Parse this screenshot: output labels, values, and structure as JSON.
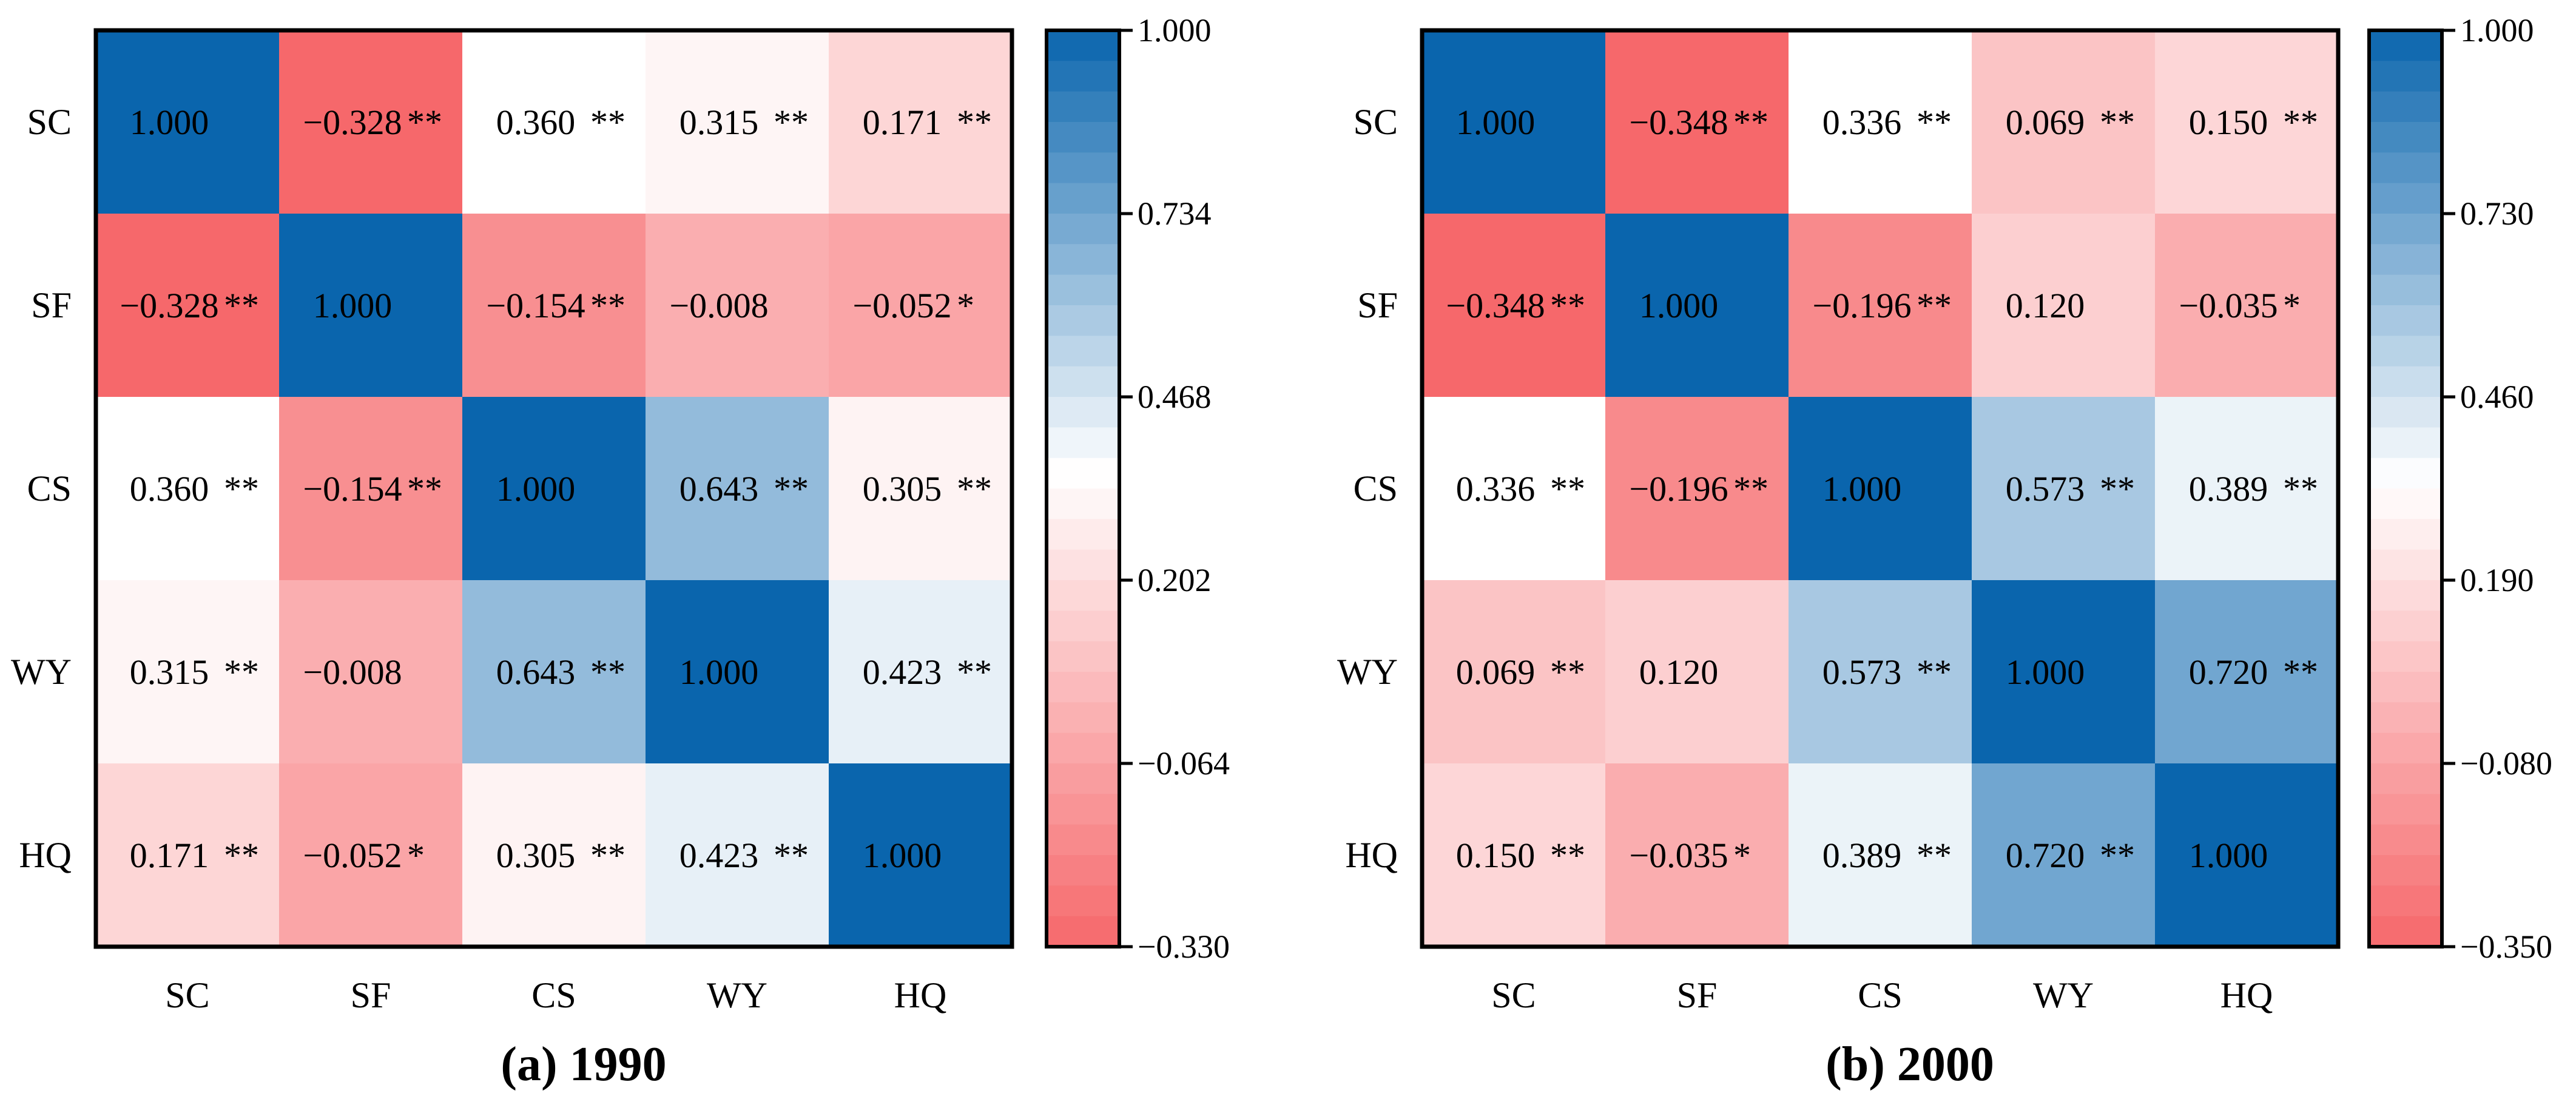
{
  "chart_data": [
    {
      "type": "heatmap",
      "title": "(a) 1990",
      "row_labels": [
        "SC",
        "SF",
        "CS",
        "WY",
        "HQ"
      ],
      "col_labels": [
        "SC",
        "SF",
        "CS",
        "WY",
        "HQ"
      ],
      "values": [
        [
          1.0,
          -0.328,
          0.36,
          0.315,
          0.171
        ],
        [
          -0.328,
          1.0,
          -0.154,
          -0.008,
          -0.052
        ],
        [
          0.36,
          -0.154,
          1.0,
          0.643,
          0.305
        ],
        [
          0.315,
          -0.008,
          0.643,
          1.0,
          0.423
        ],
        [
          0.171,
          -0.052,
          0.305,
          0.423,
          1.0
        ]
      ],
      "cell_text": [
        [
          "1.000",
          "−0.328",
          "0.360",
          "0.315",
          "0.171"
        ],
        [
          "−0.328",
          "1.000",
          "−0.154",
          "−0.008",
          "−0.052"
        ],
        [
          "0.360",
          "−0.154",
          "1.000",
          "0.643",
          "0.305"
        ],
        [
          "0.315",
          "−0.008",
          "0.643",
          "1.000",
          "0.423"
        ],
        [
          "0.171",
          "−0.052",
          "0.305",
          "0.423",
          "1.000"
        ]
      ],
      "significance": [
        [
          "",
          "**",
          "**",
          "**",
          "**"
        ],
        [
          "**",
          "",
          "**",
          "",
          "*"
        ],
        [
          "**",
          "**",
          "",
          "**",
          "**"
        ],
        [
          "**",
          "",
          "**",
          "",
          "**"
        ],
        [
          "**",
          "*",
          "**",
          "**",
          ""
        ]
      ],
      "colorbar": {
        "min": -0.33,
        "max": 1.0,
        "white_at": 0.36,
        "ticks": [
          "1.000",
          "0.734",
          "0.468",
          "0.202",
          "−0.064",
          "−0.330"
        ]
      }
    },
    {
      "type": "heatmap",
      "title": "(b) 2000",
      "row_labels": [
        "SC",
        "SF",
        "CS",
        "WY",
        "HQ"
      ],
      "col_labels": [
        "SC",
        "SF",
        "CS",
        "WY",
        "HQ"
      ],
      "values": [
        [
          1.0,
          -0.348,
          0.336,
          0.069,
          0.15
        ],
        [
          -0.348,
          1.0,
          -0.196,
          0.12,
          -0.035
        ],
        [
          0.336,
          -0.196,
          1.0,
          0.573,
          0.389
        ],
        [
          0.069,
          0.12,
          0.573,
          1.0,
          0.72
        ],
        [
          0.15,
          -0.035,
          0.389,
          0.72,
          1.0
        ]
      ],
      "cell_text": [
        [
          "1.000",
          "−0.348",
          "0.336",
          "0.069",
          "0.150"
        ],
        [
          "−0.348",
          "1.000",
          "−0.196",
          "0.120",
          "−0.035"
        ],
        [
          "0.336",
          "−0.196",
          "1.000",
          "0.573",
          "0.389"
        ],
        [
          "0.069",
          "0.120",
          "0.573",
          "1.000",
          "0.720"
        ],
        [
          "0.150",
          "−0.035",
          "0.389",
          "0.720",
          "1.000"
        ]
      ],
      "significance": [
        [
          "",
          "**",
          "**",
          "**",
          "**"
        ],
        [
          "**",
          "",
          "**",
          "",
          "*"
        ],
        [
          "**",
          "**",
          "",
          "**",
          "**"
        ],
        [
          "**",
          "",
          "**",
          "",
          "**"
        ],
        [
          "**",
          "*",
          "**",
          "**",
          ""
        ]
      ],
      "colorbar": {
        "min": -0.35,
        "max": 1.0,
        "white_at": 0.336,
        "ticks": [
          "1.000",
          "0.730",
          "0.460",
          "0.190",
          "−0.080",
          "−0.350"
        ]
      }
    }
  ],
  "colors": {
    "positive": "#0a65ad",
    "negative": "#f6686b",
    "neutral": "#ffffff"
  }
}
